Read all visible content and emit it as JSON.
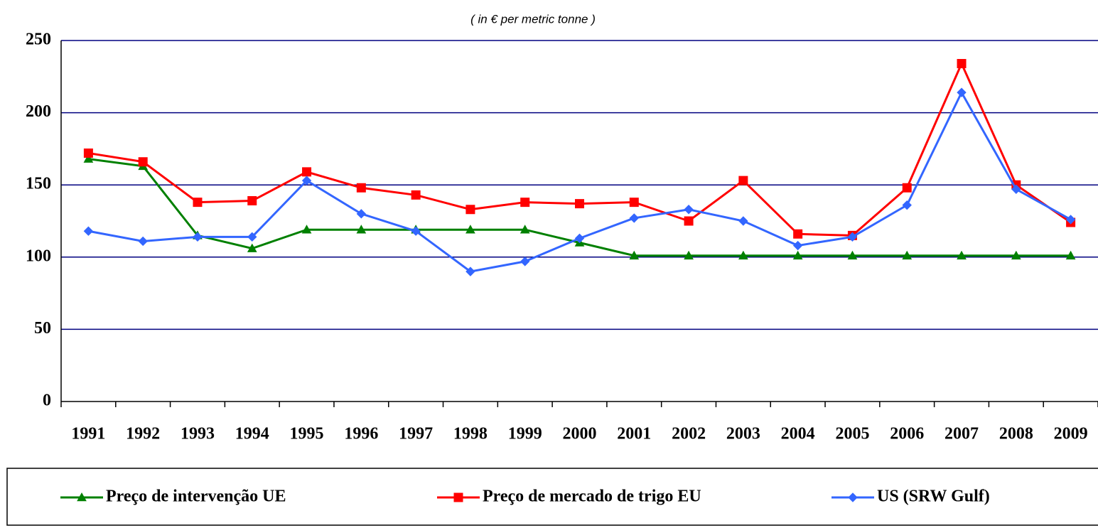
{
  "chart_data": {
    "type": "line",
    "subtitle": "( in € per metric tonne )",
    "categories": [
      "1991",
      "1992",
      "1993",
      "1994",
      "1995",
      "1996",
      "1997",
      "1998",
      "1999",
      "2000",
      "2001",
      "2002",
      "2003",
      "2004",
      "2005",
      "2006",
      "2007",
      "2008",
      "2009"
    ],
    "series": [
      {
        "name": "Preço de intervenção UE",
        "color": "#008000",
        "marker": "triangle",
        "values": [
          168,
          163,
          115,
          106,
          119,
          119,
          119,
          119,
          119,
          110,
          101,
          101,
          101,
          101,
          101,
          101,
          101,
          101,
          101
        ]
      },
      {
        "name": "Preço de mercado de trigo EU",
        "color": "#ff0000",
        "marker": "square",
        "values": [
          172,
          166,
          138,
          139,
          159,
          148,
          143,
          133,
          138,
          137,
          138,
          125,
          153,
          116,
          115,
          148,
          234,
          150,
          124
        ]
      },
      {
        "name": "US (SRW Gulf)",
        "color": "#3366ff",
        "marker": "diamond",
        "values": [
          118,
          111,
          114,
          114,
          153,
          130,
          118,
          90,
          97,
          113,
          127,
          133,
          125,
          108,
          114,
          136,
          214,
          147,
          126
        ]
      }
    ],
    "ylim": [
      0,
      250
    ],
    "yticks": [
      0,
      50,
      100,
      150,
      200,
      250
    ],
    "grid": true,
    "legend": "bottom"
  }
}
